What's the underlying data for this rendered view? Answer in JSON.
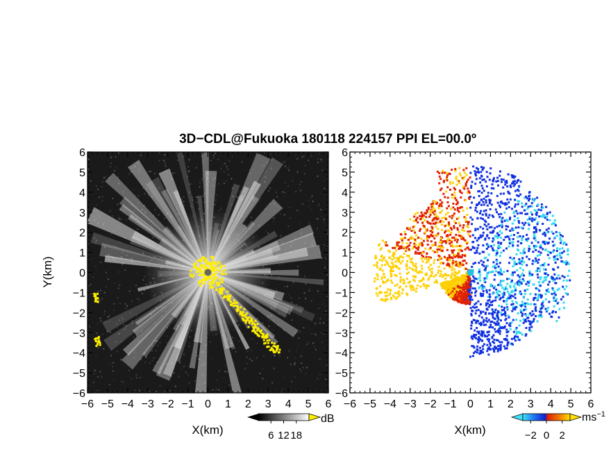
{
  "chart_data": {
    "title": "3D−CDL@Fukuoka 180118 224157 PPI EL=00.0º",
    "panels": [
      {
        "type": "heatmap",
        "name": "snr",
        "xlabel": "X(km)",
        "ylabel": "Y(km)",
        "xlim": [
          -6,
          6
        ],
        "ylim": [
          -6,
          6
        ],
        "x_ticks": [
          "−6",
          "−5",
          "−4",
          "−3",
          "−2",
          "−1",
          "0",
          "1",
          "2",
          "3",
          "4",
          "5",
          "6"
        ],
        "y_ticks": [
          "6",
          "5",
          "4",
          "3",
          "2",
          "1",
          "0",
          "−1",
          "−2",
          "−3",
          "−4",
          "−5",
          "−6"
        ],
        "background": "#1a1a1a",
        "colorbar": {
          "ticks": [
            "6",
            "12",
            "18"
          ],
          "unit": "dB",
          "range": [
            0,
            24
          ],
          "tick_values": [
            6,
            12,
            18
          ]
        }
      },
      {
        "type": "heatmap",
        "name": "doppler-velocity",
        "xlabel": "X(km)",
        "ylabel": "",
        "xlim": [
          -6,
          6
        ],
        "ylim": [
          -6,
          6
        ],
        "x_ticks": [
          "−6",
          "−5",
          "−4",
          "−3",
          "−2",
          "−1",
          "0",
          "1",
          "2",
          "3",
          "4",
          "5",
          "6"
        ],
        "y_ticks": [
          "6",
          "5",
          "4",
          "3",
          "2",
          "1",
          "0",
          "−1",
          "−2",
          "−3",
          "−4",
          "−5",
          "−6"
        ],
        "background": "#ffffff",
        "colorbar": {
          "ticks": [
            "−2",
            "0",
            "2"
          ],
          "unit": "ms",
          "unit_sup": "−1",
          "range": [
            -3,
            3
          ],
          "tick_values": [
            -2,
            0,
            2
          ]
        }
      }
    ],
    "colors": {
      "snr_low": "#2a2a2a",
      "snr_high": "#ffffff",
      "snr_saturated": "#ffee00",
      "vel_neg_strong": "#1030e0",
      "vel_neg_weak": "#30d8f0",
      "vel_pos_weak": "#ffd000",
      "vel_pos_strong": "#e02000"
    }
  }
}
